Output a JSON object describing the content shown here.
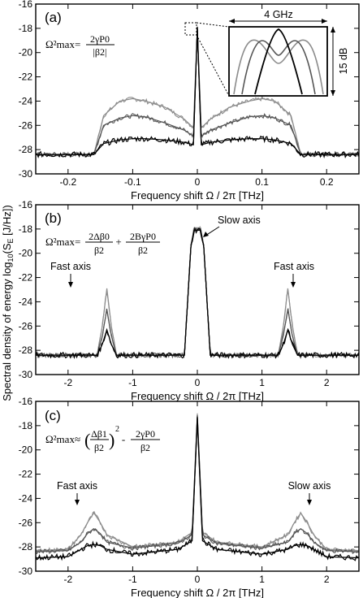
{
  "ylabel_shared": "Spectral density of energy log10(SE [J/Hz])",
  "ylabel_parts": {
    "a": "Spectral density of energy log",
    "sub": "10",
    "b": "(S",
    "e": "E",
    "c": " [J/Hz])"
  },
  "colors": {
    "low": "#000000",
    "mid": "#555555",
    "high": "#8c8c8c"
  },
  "chart_data": [
    {
      "type": "line",
      "panel_label": "(a)",
      "xlabel": "Frequency shift Ω / 2π [THz]",
      "ylabel": "",
      "xlim": [
        -0.25,
        0.25
      ],
      "ylim": [
        -30,
        -16
      ],
      "xticks": [
        -0.2,
        -0.1,
        0,
        0.1,
        0.2
      ],
      "xtick_labels": [
        "-0.2",
        "-0.1",
        "0",
        "0.1",
        "0.2"
      ],
      "yticks": [
        -30,
        -28,
        -26,
        -24,
        -22,
        -20,
        -18,
        -16
      ],
      "ytick_labels": [
        "-30",
        "-28",
        "-26",
        "-24",
        "-22",
        "-20",
        "-18",
        "-16"
      ],
      "formula": {
        "lhs": "Ω²max=",
        "num": "2γP0",
        "den": "|β2|"
      },
      "inset": {
        "width_label": "4 GHz",
        "height_label": "15 dB"
      },
      "series": [
        {
          "level": "high",
          "x": [
            -0.25,
            -0.16,
            -0.145,
            -0.12,
            -0.1,
            -0.08,
            -0.05,
            -0.02,
            -0.006,
            0,
            0.006,
            0.02,
            0.05,
            0.08,
            0.1,
            0.12,
            0.145,
            0.16,
            0.25
          ],
          "y": [
            -28.4,
            -28.4,
            -25.2,
            -24.0,
            -23.8,
            -24.0,
            -24.5,
            -25.5,
            -26.2,
            -18.0,
            -26.2,
            -25.5,
            -24.5,
            -24.0,
            -23.8,
            -24.0,
            -25.2,
            -28.4,
            -28.4
          ]
        },
        {
          "level": "mid",
          "x": [
            -0.25,
            -0.16,
            -0.145,
            -0.12,
            -0.1,
            -0.08,
            -0.05,
            -0.02,
            -0.006,
            0,
            0.006,
            0.02,
            0.05,
            0.08,
            0.1,
            0.12,
            0.145,
            0.16,
            0.25
          ],
          "y": [
            -28.4,
            -28.4,
            -26.0,
            -25.4,
            -25.2,
            -25.3,
            -25.8,
            -26.4,
            -26.9,
            -18.0,
            -26.9,
            -26.4,
            -25.8,
            -25.3,
            -25.2,
            -25.4,
            -26.0,
            -28.4,
            -28.4
          ]
        },
        {
          "level": "low",
          "x": [
            -0.25,
            -0.16,
            -0.145,
            -0.12,
            -0.1,
            -0.08,
            -0.05,
            -0.02,
            -0.006,
            0,
            0.006,
            0.02,
            0.05,
            0.08,
            0.1,
            0.12,
            0.145,
            0.16,
            0.25
          ],
          "y": [
            -28.4,
            -28.4,
            -27.5,
            -27.2,
            -27.1,
            -27.1,
            -27.2,
            -27.4,
            -27.6,
            -18.0,
            -27.6,
            -27.4,
            -27.2,
            -27.1,
            -27.1,
            -27.2,
            -27.5,
            -28.4,
            -28.4
          ]
        }
      ]
    },
    {
      "type": "line",
      "panel_label": "(b)",
      "xlabel": "Frequency shift Ω / 2π [THz]",
      "ylabel": "",
      "xlim": [
        -2.5,
        2.5
      ],
      "ylim": [
        -30,
        -16
      ],
      "xticks": [
        -2,
        -1,
        0,
        1,
        2
      ],
      "xtick_labels": [
        "-2",
        "-1",
        "0",
        "1",
        "2"
      ],
      "yticks": [
        -30,
        -28,
        -26,
        -24,
        -22,
        -20,
        -18,
        -16
      ],
      "ytick_labels": [
        "-30",
        "-28",
        "-26",
        "-24",
        "-22",
        "-20",
        "-18",
        "-16"
      ],
      "formula": {
        "lhs": "Ω²max=",
        "num1": "2Δβ0",
        "den1": "β2",
        "plus": "+",
        "num2": "2BγP0",
        "den2": "β2"
      },
      "annotations": [
        "Fast axis",
        "Slow axis",
        "Fast axis"
      ],
      "series": [
        {
          "level": "high",
          "x": [
            -2.5,
            -1.55,
            -1.47,
            -1.4,
            -1.33,
            -1.25,
            -0.2,
            -0.1,
            -0.05,
            0.05,
            0.1,
            0.2,
            1.25,
            1.33,
            1.4,
            1.47,
            1.55,
            2.5
          ],
          "y": [
            -28.4,
            -28.4,
            -26.0,
            -22.9,
            -26.0,
            -28.4,
            -28.4,
            -19.5,
            -17.9,
            -17.9,
            -19.5,
            -28.4,
            -28.4,
            -26.0,
            -22.9,
            -26.0,
            -28.4,
            -28.4
          ]
        },
        {
          "level": "mid",
          "x": [
            -2.5,
            -1.55,
            -1.47,
            -1.4,
            -1.33,
            -1.25,
            -0.2,
            -0.1,
            -0.05,
            0.05,
            0.1,
            0.2,
            1.25,
            1.33,
            1.4,
            1.47,
            1.55,
            2.5
          ],
          "y": [
            -28.4,
            -28.4,
            -26.8,
            -24.6,
            -26.8,
            -28.4,
            -28.4,
            -19.5,
            -18.0,
            -18.0,
            -19.5,
            -28.4,
            -28.4,
            -26.8,
            -24.6,
            -26.8,
            -28.4,
            -28.4
          ]
        },
        {
          "level": "low",
          "x": [
            -2.5,
            -1.55,
            -1.47,
            -1.4,
            -1.33,
            -1.25,
            -0.2,
            -0.1,
            -0.05,
            0.05,
            0.1,
            0.2,
            1.25,
            1.33,
            1.4,
            1.47,
            1.55,
            2.5
          ],
          "y": [
            -28.4,
            -28.4,
            -27.5,
            -26.3,
            -27.5,
            -28.4,
            -28.4,
            -19.5,
            -18.1,
            -18.1,
            -19.5,
            -28.4,
            -28.4,
            -27.5,
            -26.3,
            -27.5,
            -28.4,
            -28.4
          ]
        }
      ]
    },
    {
      "type": "line",
      "panel_label": "(c)",
      "xlabel": "Frequency shift Ω / 2π [THz]",
      "ylabel": "",
      "xlim": [
        -2.5,
        2.5
      ],
      "ylim": [
        -30,
        -16
      ],
      "xticks": [
        -2,
        -1,
        0,
        1,
        2
      ],
      "xtick_labels": [
        "-2",
        "-1",
        "0",
        "1",
        "2"
      ],
      "yticks": [
        -30,
        -28,
        -26,
        -24,
        -22,
        -20,
        -18,
        -16
      ],
      "ytick_labels": [
        "-30",
        "-28",
        "-26",
        "-24",
        "-22",
        "-20",
        "-18",
        "-16"
      ],
      "formula": {
        "lhs": "Ω²max≈",
        "num1": "Δβ1",
        "den1": "β2",
        "exp": "2",
        "minus": "-",
        "num2": "2γP0",
        "den2": "β2"
      },
      "annotations": [
        "Fast axis",
        "Slow axis"
      ],
      "series": [
        {
          "level": "high",
          "x": [
            -2.5,
            -2.0,
            -1.8,
            -1.7,
            -1.6,
            -1.5,
            -1.4,
            -1.0,
            -0.3,
            -0.08,
            0,
            0.08,
            0.3,
            1.0,
            1.4,
            1.5,
            1.6,
            1.7,
            1.8,
            2.0,
            2.5
          ],
          "y": [
            -28.3,
            -28.2,
            -27.0,
            -26.0,
            -25.2,
            -26.0,
            -27.0,
            -28.0,
            -27.6,
            -26.8,
            -17.1,
            -26.8,
            -27.6,
            -28.0,
            -27.0,
            -26.0,
            -25.2,
            -26.0,
            -27.0,
            -28.2,
            -28.3
          ]
        },
        {
          "level": "mid",
          "x": [
            -2.5,
            -2.0,
            -1.8,
            -1.7,
            -1.6,
            -1.5,
            -1.4,
            -1.0,
            -0.3,
            -0.08,
            0,
            0.08,
            0.3,
            1.0,
            1.4,
            1.5,
            1.6,
            1.7,
            1.8,
            2.0,
            2.5
          ],
          "y": [
            -28.4,
            -28.3,
            -27.6,
            -26.9,
            -26.5,
            -26.9,
            -27.6,
            -28.1,
            -27.7,
            -27.0,
            -17.2,
            -27.0,
            -27.7,
            -28.1,
            -27.6,
            -26.9,
            -26.5,
            -26.9,
            -27.6,
            -28.3,
            -28.4
          ]
        },
        {
          "level": "low",
          "x": [
            -2.5,
            -2.0,
            -1.8,
            -1.7,
            -1.6,
            -1.5,
            -1.4,
            -1.0,
            -0.3,
            -0.08,
            0,
            0.08,
            0.3,
            1.0,
            1.4,
            1.5,
            1.6,
            1.7,
            1.8,
            2.0,
            2.5
          ],
          "y": [
            -28.9,
            -28.8,
            -28.2,
            -27.9,
            -27.8,
            -27.9,
            -28.2,
            -28.6,
            -28.2,
            -27.5,
            -17.3,
            -27.5,
            -28.2,
            -28.6,
            -28.2,
            -27.9,
            -27.8,
            -27.9,
            -28.2,
            -28.8,
            -28.9
          ]
        }
      ]
    }
  ]
}
